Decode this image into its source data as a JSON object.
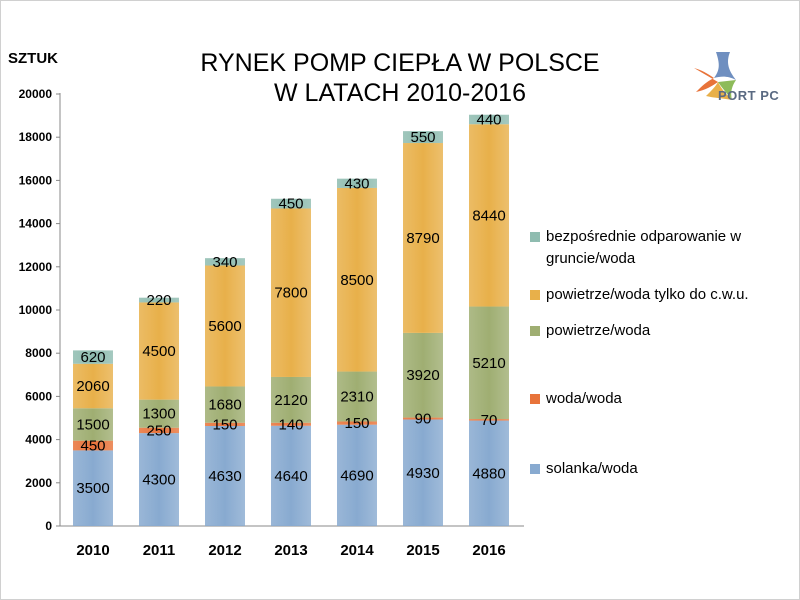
{
  "title_line1": "RYNEK POMP CIEPŁA W POLSCE",
  "title_line2": "W LATACH 2010-2016",
  "unit_label": "SZTUK",
  "logo_text": "PORT PC",
  "legend": [
    {
      "label": "bezpośrednie odparowanie w gruncie/woda",
      "color": "#8fbcb0"
    },
    {
      "label": "powietrze/woda tylko do c.w.u.",
      "color": "#e8b04a"
    },
    {
      "label": "powietrze/woda",
      "color": "#9fae72"
    },
    {
      "label": "woda/woda",
      "color": "#e8733a"
    },
    {
      "label": "solanka/woda",
      "color": "#88aad0"
    }
  ],
  "chart_data": {
    "type": "bar",
    "stacked": true,
    "title": "RYNEK POMP CIEPŁA W POLSCE W LATACH 2010-2016",
    "ylabel": "SZTUK",
    "ylim": [
      0,
      20000
    ],
    "yticks": [
      0,
      2000,
      4000,
      6000,
      8000,
      10000,
      12000,
      14000,
      16000,
      18000,
      20000
    ],
    "grid": false,
    "legend_position": "right",
    "categories": [
      "2010",
      "2011",
      "2012",
      "2013",
      "2014",
      "2015",
      "2016"
    ],
    "series": [
      {
        "name": "solanka/woda",
        "color": "#88aad0",
        "values": [
          3500,
          4300,
          4630,
          4640,
          4690,
          4930,
          4880
        ]
      },
      {
        "name": "woda/woda",
        "color": "#e8733a",
        "values": [
          450,
          250,
          150,
          140,
          150,
          90,
          70
        ]
      },
      {
        "name": "powietrze/woda",
        "color": "#9fae72",
        "values": [
          1500,
          1300,
          1680,
          2120,
          2310,
          3920,
          5210
        ]
      },
      {
        "name": "powietrze/woda tylko do c.w.u.",
        "color": "#e8b04a",
        "values": [
          2060,
          4500,
          5600,
          7800,
          8500,
          8790,
          8440
        ]
      },
      {
        "name": "bezpośrednie odparowanie w gruncie/woda",
        "color": "#8fbcb0",
        "values": [
          620,
          220,
          340,
          450,
          430,
          550,
          440
        ]
      }
    ]
  }
}
